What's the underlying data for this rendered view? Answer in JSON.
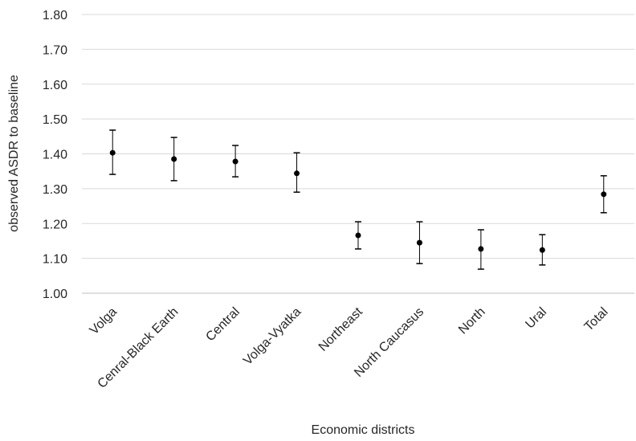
{
  "chart_data": {
    "type": "errorbar",
    "y_label": "observed ASDR to baseline",
    "x_label": "Economic districts",
    "categories": [
      "Volga",
      "Cenral-Black Earth",
      "Central",
      "Volga-Vyatka",
      "Northeast",
      "North Caucasus",
      "North",
      "Ural",
      "Total"
    ],
    "values": [
      1.403,
      1.385,
      1.378,
      1.344,
      1.166,
      1.145,
      1.127,
      1.124,
      1.284
    ],
    "lower": [
      1.341,
      1.323,
      1.334,
      1.29,
      1.127,
      1.085,
      1.069,
      1.081,
      1.231
    ],
    "upper": [
      1.468,
      1.447,
      1.424,
      1.403,
      1.205,
      1.205,
      1.182,
      1.168,
      1.337
    ],
    "color": "#000000",
    "ylim": [
      1.0,
      1.8
    ],
    "yticks": [
      {
        "value": 1.0,
        "label": "1.00"
      },
      {
        "value": 1.1,
        "label": "1.10"
      },
      {
        "value": 1.2,
        "label": "1.20"
      },
      {
        "value": 1.3,
        "label": "1.30"
      },
      {
        "value": 1.4,
        "label": "1.40"
      },
      {
        "value": 1.5,
        "label": "1.50"
      },
      {
        "value": 1.6,
        "label": "1.60"
      },
      {
        "value": 1.7,
        "label": "1.70"
      },
      {
        "value": 1.8,
        "label": "1.80"
      }
    ],
    "grid": true
  }
}
